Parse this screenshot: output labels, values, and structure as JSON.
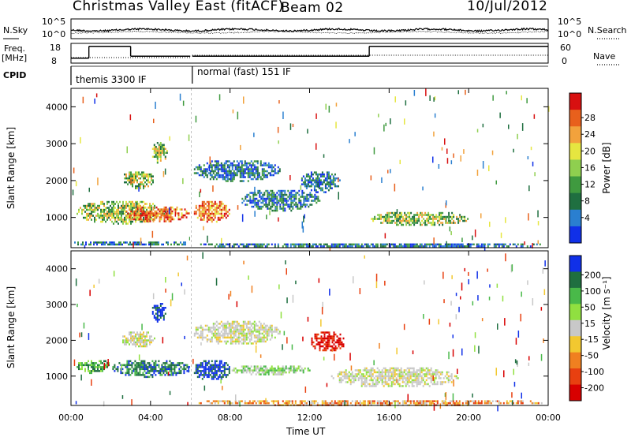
{
  "header": {
    "station": "Christmas Valley East (fitACF)",
    "beam": "Beam 02",
    "date": "10/Jul/2012"
  },
  "top_panels": {
    "nsky_label": "N.Sky",
    "nsearch_label": "N.Search",
    "freq_label_1": "Freq.",
    "freq_label_2": "[MHz]",
    "nave_label": "Nave",
    "cpid_label": "CPID",
    "nsky_ticks": [
      "10^5",
      "10^0"
    ],
    "nsearch_ticks": [
      "10^5",
      "10^0"
    ],
    "freq_ticks": [
      "18",
      "8"
    ],
    "nave_ticks": [
      "60",
      "0"
    ],
    "modes": [
      {
        "name": "themis 3300 IF",
        "start_hour": 0,
        "end_hour": 6.1
      },
      {
        "name": "normal (fast) 151 IF",
        "start_hour": 6.1,
        "end_hour": 24
      }
    ],
    "freq_mhz": [
      {
        "from": 0,
        "to": 0.9,
        "value": 10.5
      },
      {
        "from": 0.9,
        "to": 3.0,
        "value": 16.5
      },
      {
        "from": 3.0,
        "to": 6.0,
        "value": 11.5
      },
      {
        "from": 6.1,
        "to": 15.0,
        "value": 11.5
      },
      {
        "from": 15.0,
        "to": 24.0,
        "value": 16.5
      }
    ]
  },
  "colors": {
    "power_scale": [
      "#1030e8",
      "#2a7fd0",
      "#1f6f40",
      "#3f9a3f",
      "#8fcf4f",
      "#e6e640",
      "#f2a23c",
      "#e8601c",
      "#d81010"
    ],
    "velocity_scale": [
      "#1030e8",
      "#1f6f40",
      "#49b949",
      "#90e040",
      "#c8c8c8",
      "#f2c830",
      "#f08020",
      "#e84010",
      "#d80000"
    ]
  },
  "chart_data": [
    {
      "type": "heatmap",
      "name": "power",
      "xlabel": "",
      "ylabel": "Slant Range [km]",
      "colorbar_label": "Power [dB]",
      "colorbar_ticks": [
        "28",
        "24",
        "20",
        "16",
        "12",
        "8",
        "4"
      ],
      "ylim": [
        180,
        4500
      ],
      "yticks": [
        "4000",
        "3000",
        "2000",
        "1000"
      ],
      "xlim_hours": [
        0,
        24
      ],
      "blobs": [
        {
          "t0": 0.0,
          "t1": 6.0,
          "r0": 250,
          "r1": 400,
          "level": "low"
        },
        {
          "t0": 0.2,
          "t1": 4.8,
          "r0": 850,
          "r1": 1500,
          "level": "medium"
        },
        {
          "t0": 2.6,
          "t1": 6.0,
          "r0": 900,
          "r1": 1350,
          "level": "high"
        },
        {
          "t0": 6.1,
          "t1": 8.0,
          "r0": 900,
          "r1": 1500,
          "level": "high"
        },
        {
          "t0": 2.5,
          "t1": 4.2,
          "r0": 1800,
          "r1": 2300,
          "level": "medium"
        },
        {
          "t0": 4.0,
          "t1": 4.8,
          "r0": 2500,
          "r1": 3100,
          "level": "medium"
        },
        {
          "t0": 6.1,
          "t1": 10.5,
          "r0": 2000,
          "r1": 2600,
          "level": "low"
        },
        {
          "t0": 8.5,
          "t1": 12.5,
          "r0": 1200,
          "r1": 1800,
          "level": "low"
        },
        {
          "t0": 11.5,
          "t1": 13.5,
          "r0": 1700,
          "r1": 2300,
          "level": "low"
        },
        {
          "t0": 15.0,
          "t1": 20.0,
          "r0": 800,
          "r1": 1200,
          "level": "medium"
        },
        {
          "t0": 6.1,
          "t1": 24.0,
          "r0": 200,
          "r1": 350,
          "level": "low"
        }
      ]
    },
    {
      "type": "heatmap",
      "name": "velocity",
      "xlabel": "Time UT",
      "ylabel": "Slant Range [km]",
      "colorbar_label": "Velocity [m s⁻¹]",
      "colorbar_ticks": [
        "200",
        "100",
        "50",
        "15",
        "-15",
        "-50",
        "-100",
        "-200"
      ],
      "ylim": [
        180,
        4500
      ],
      "yticks": [
        "4000",
        "3000",
        "2000",
        "1000"
      ],
      "xlim_hours": [
        0,
        24
      ],
      "xticks": [
        "00:00",
        "04:00",
        "08:00",
        "12:00",
        "16:00",
        "20:00",
        "00:00"
      ],
      "blobs": [
        {
          "t0": 0.2,
          "t1": 2.0,
          "r0": 1100,
          "r1": 1500,
          "vel": "pos_mid"
        },
        {
          "t0": 2.0,
          "t1": 6.0,
          "r0": 1000,
          "r1": 1500,
          "vel": "pos_high"
        },
        {
          "t0": 6.1,
          "t1": 8.0,
          "r0": 900,
          "r1": 1500,
          "vel": "pos_top"
        },
        {
          "t0": 4.0,
          "t1": 4.8,
          "r0": 2500,
          "r1": 3100,
          "vel": "pos_top"
        },
        {
          "t0": 2.5,
          "t1": 4.2,
          "r0": 1800,
          "r1": 2300,
          "vel": "zero"
        },
        {
          "t0": 6.1,
          "t1": 10.5,
          "r0": 1900,
          "r1": 2600,
          "vel": "zero"
        },
        {
          "t0": 12.0,
          "t1": 13.8,
          "r0": 1700,
          "r1": 2300,
          "vel": "neg_top"
        },
        {
          "t0": 13.0,
          "t1": 19.5,
          "r0": 700,
          "r1": 1300,
          "vel": "zero"
        },
        {
          "t0": 8.0,
          "t1": 12.0,
          "r0": 1050,
          "r1": 1350,
          "vel": "pos_low"
        },
        {
          "t0": 6.1,
          "t1": 24.0,
          "r0": 200,
          "r1": 380,
          "vel": "neg_low"
        }
      ]
    }
  ]
}
